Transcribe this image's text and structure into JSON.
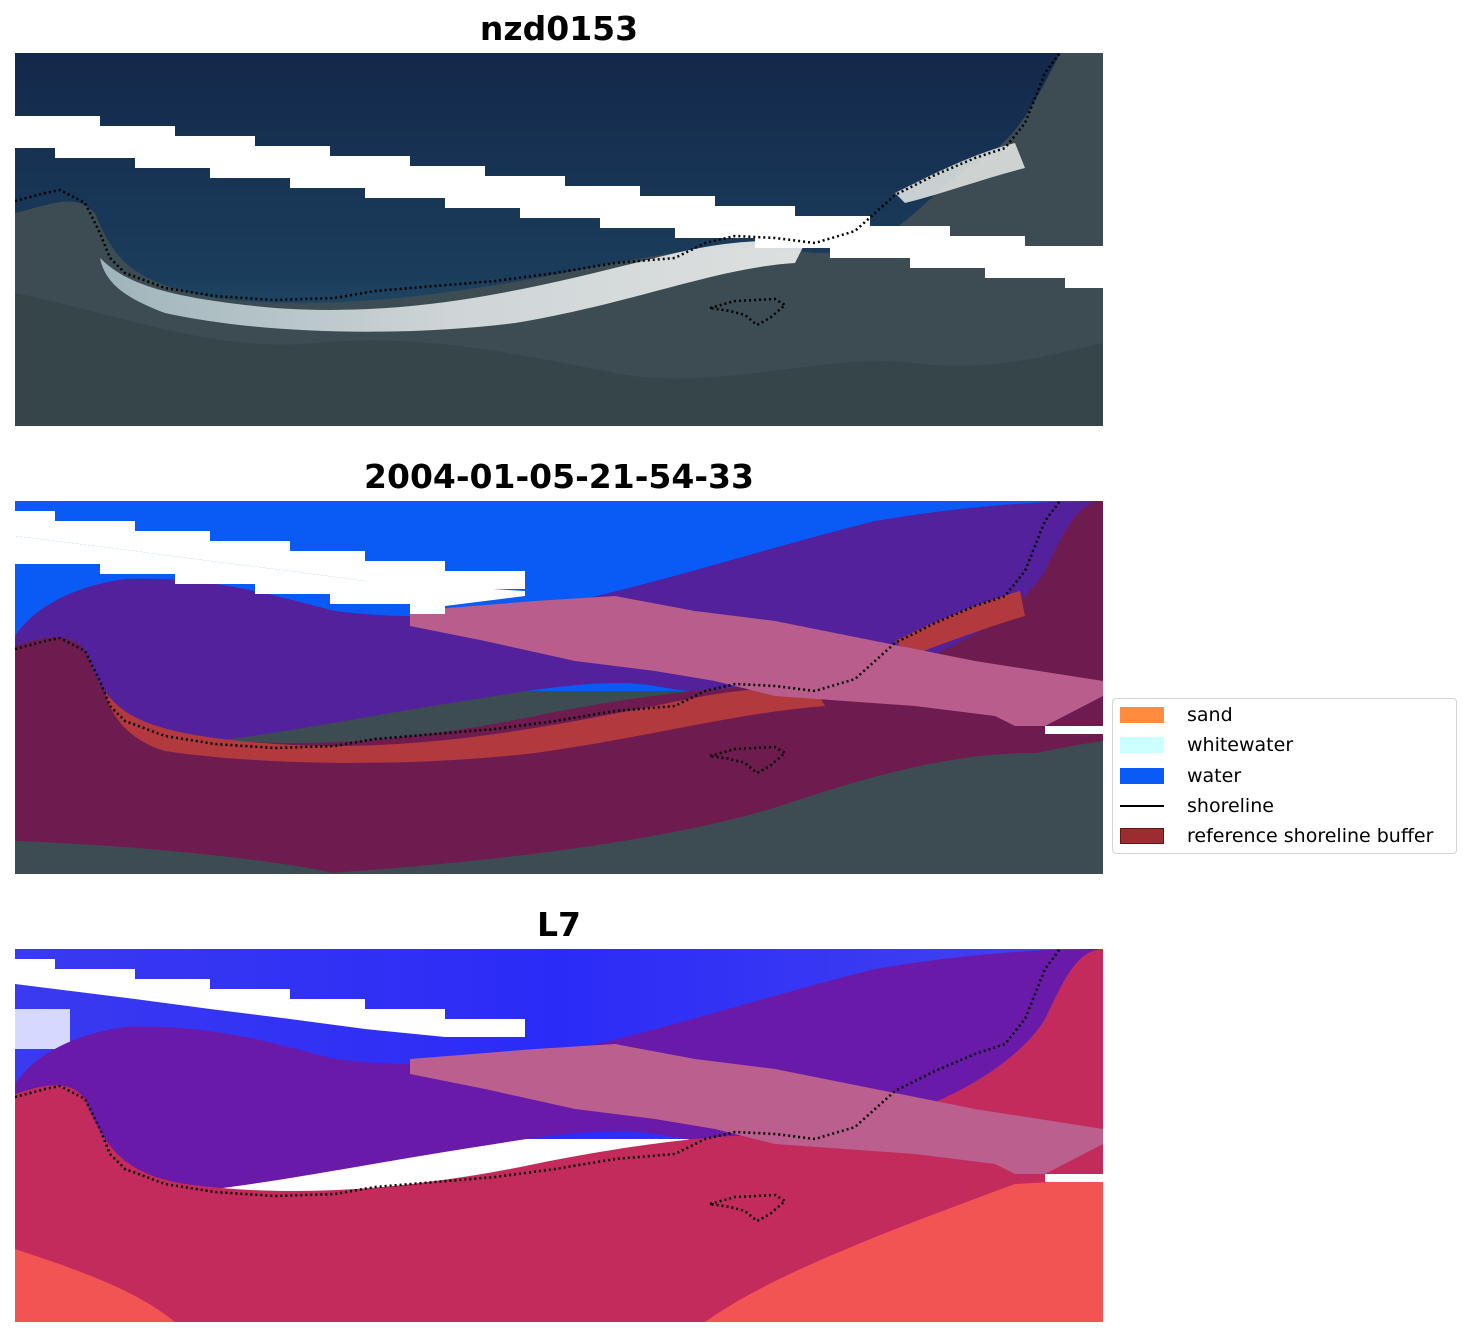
{
  "panels": [
    {
      "title": "nzd0153",
      "kind": "satellite-rgb"
    },
    {
      "title": "2004-01-05-21-54-33",
      "kind": "classification-overlay"
    },
    {
      "title": "L7",
      "kind": "index-overlay"
    }
  ],
  "legend": {
    "items": [
      {
        "label": "sand",
        "type": "patch",
        "color": "#ff8c3c"
      },
      {
        "label": "whitewater",
        "type": "patch",
        "color": "#ccffff"
      },
      {
        "label": "water",
        "type": "patch",
        "color": "#0a5bf5"
      },
      {
        "label": "shoreline",
        "type": "line",
        "color": "#000000"
      },
      {
        "label": "reference shoreline buffer",
        "type": "patch",
        "color": "#9b2d30"
      }
    ]
  },
  "colors": {
    "deep_water": "#142b4d",
    "land": "#3d4d52",
    "beach": "#d9dde0",
    "water_class": "#0a5bf5",
    "buffer_overlay": "#6e1c50",
    "pink_band": "#b95e8c",
    "purple_overlay": "#53219b",
    "index_blue": "#2f2ff7",
    "index_red": "#f04848"
  }
}
